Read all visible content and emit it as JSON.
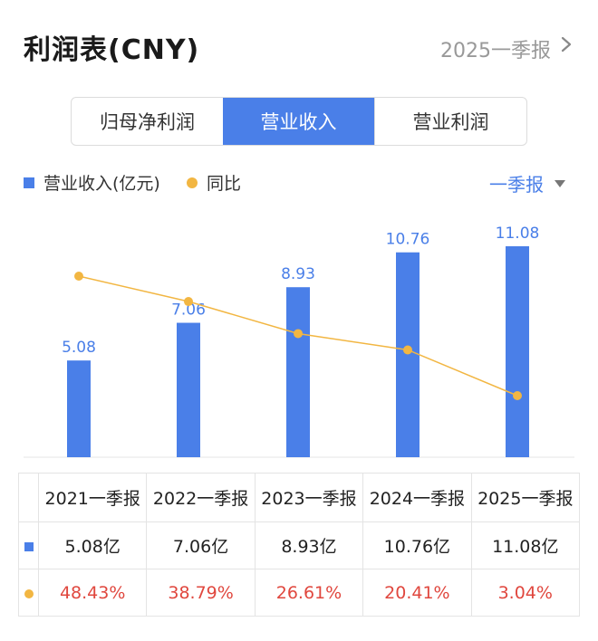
{
  "header": {
    "title": "利润表(CNY)",
    "period": "2025一季报",
    "chevron_icon": "chevron-right-icon"
  },
  "tabs": [
    {
      "label": "归母净利润",
      "active": false
    },
    {
      "label": "营业收入",
      "active": true
    },
    {
      "label": "营业利润",
      "active": false
    }
  ],
  "legend": {
    "bar_label": "营业收入(亿元)",
    "line_label": "同比"
  },
  "period_select": {
    "label": "一季报",
    "icon": "caret-down-icon"
  },
  "colors": {
    "bar": "#4a7fe8",
    "line": "#f2b642",
    "yoy_text": "#e0473e",
    "accent": "#4a7fe8"
  },
  "chart_data": {
    "type": "bar",
    "categories": [
      "2021一季报",
      "2022一季报",
      "2023一季报",
      "2024一季报",
      "2025一季报"
    ],
    "series": [
      {
        "name": "营业收入(亿元)",
        "type": "bar",
        "values": [
          5.08,
          7.06,
          8.93,
          10.76,
          11.08
        ],
        "labels": [
          "5.08",
          "7.06",
          "8.93",
          "10.76",
          "11.08"
        ]
      },
      {
        "name": "同比",
        "type": "line",
        "values": [
          48.43,
          38.79,
          26.61,
          20.41,
          3.04
        ]
      }
    ],
    "grid": false,
    "legend_position": "top-left"
  },
  "table": {
    "columns": [
      "2021一季报",
      "2022一季报",
      "2023一季报",
      "2024一季报",
      "2025一季报"
    ],
    "revenue": [
      "5.08亿",
      "7.06亿",
      "8.93亿",
      "10.76亿",
      "11.08亿"
    ],
    "yoy": [
      "48.43%",
      "38.79%",
      "26.61%",
      "20.41%",
      "3.04%"
    ]
  }
}
